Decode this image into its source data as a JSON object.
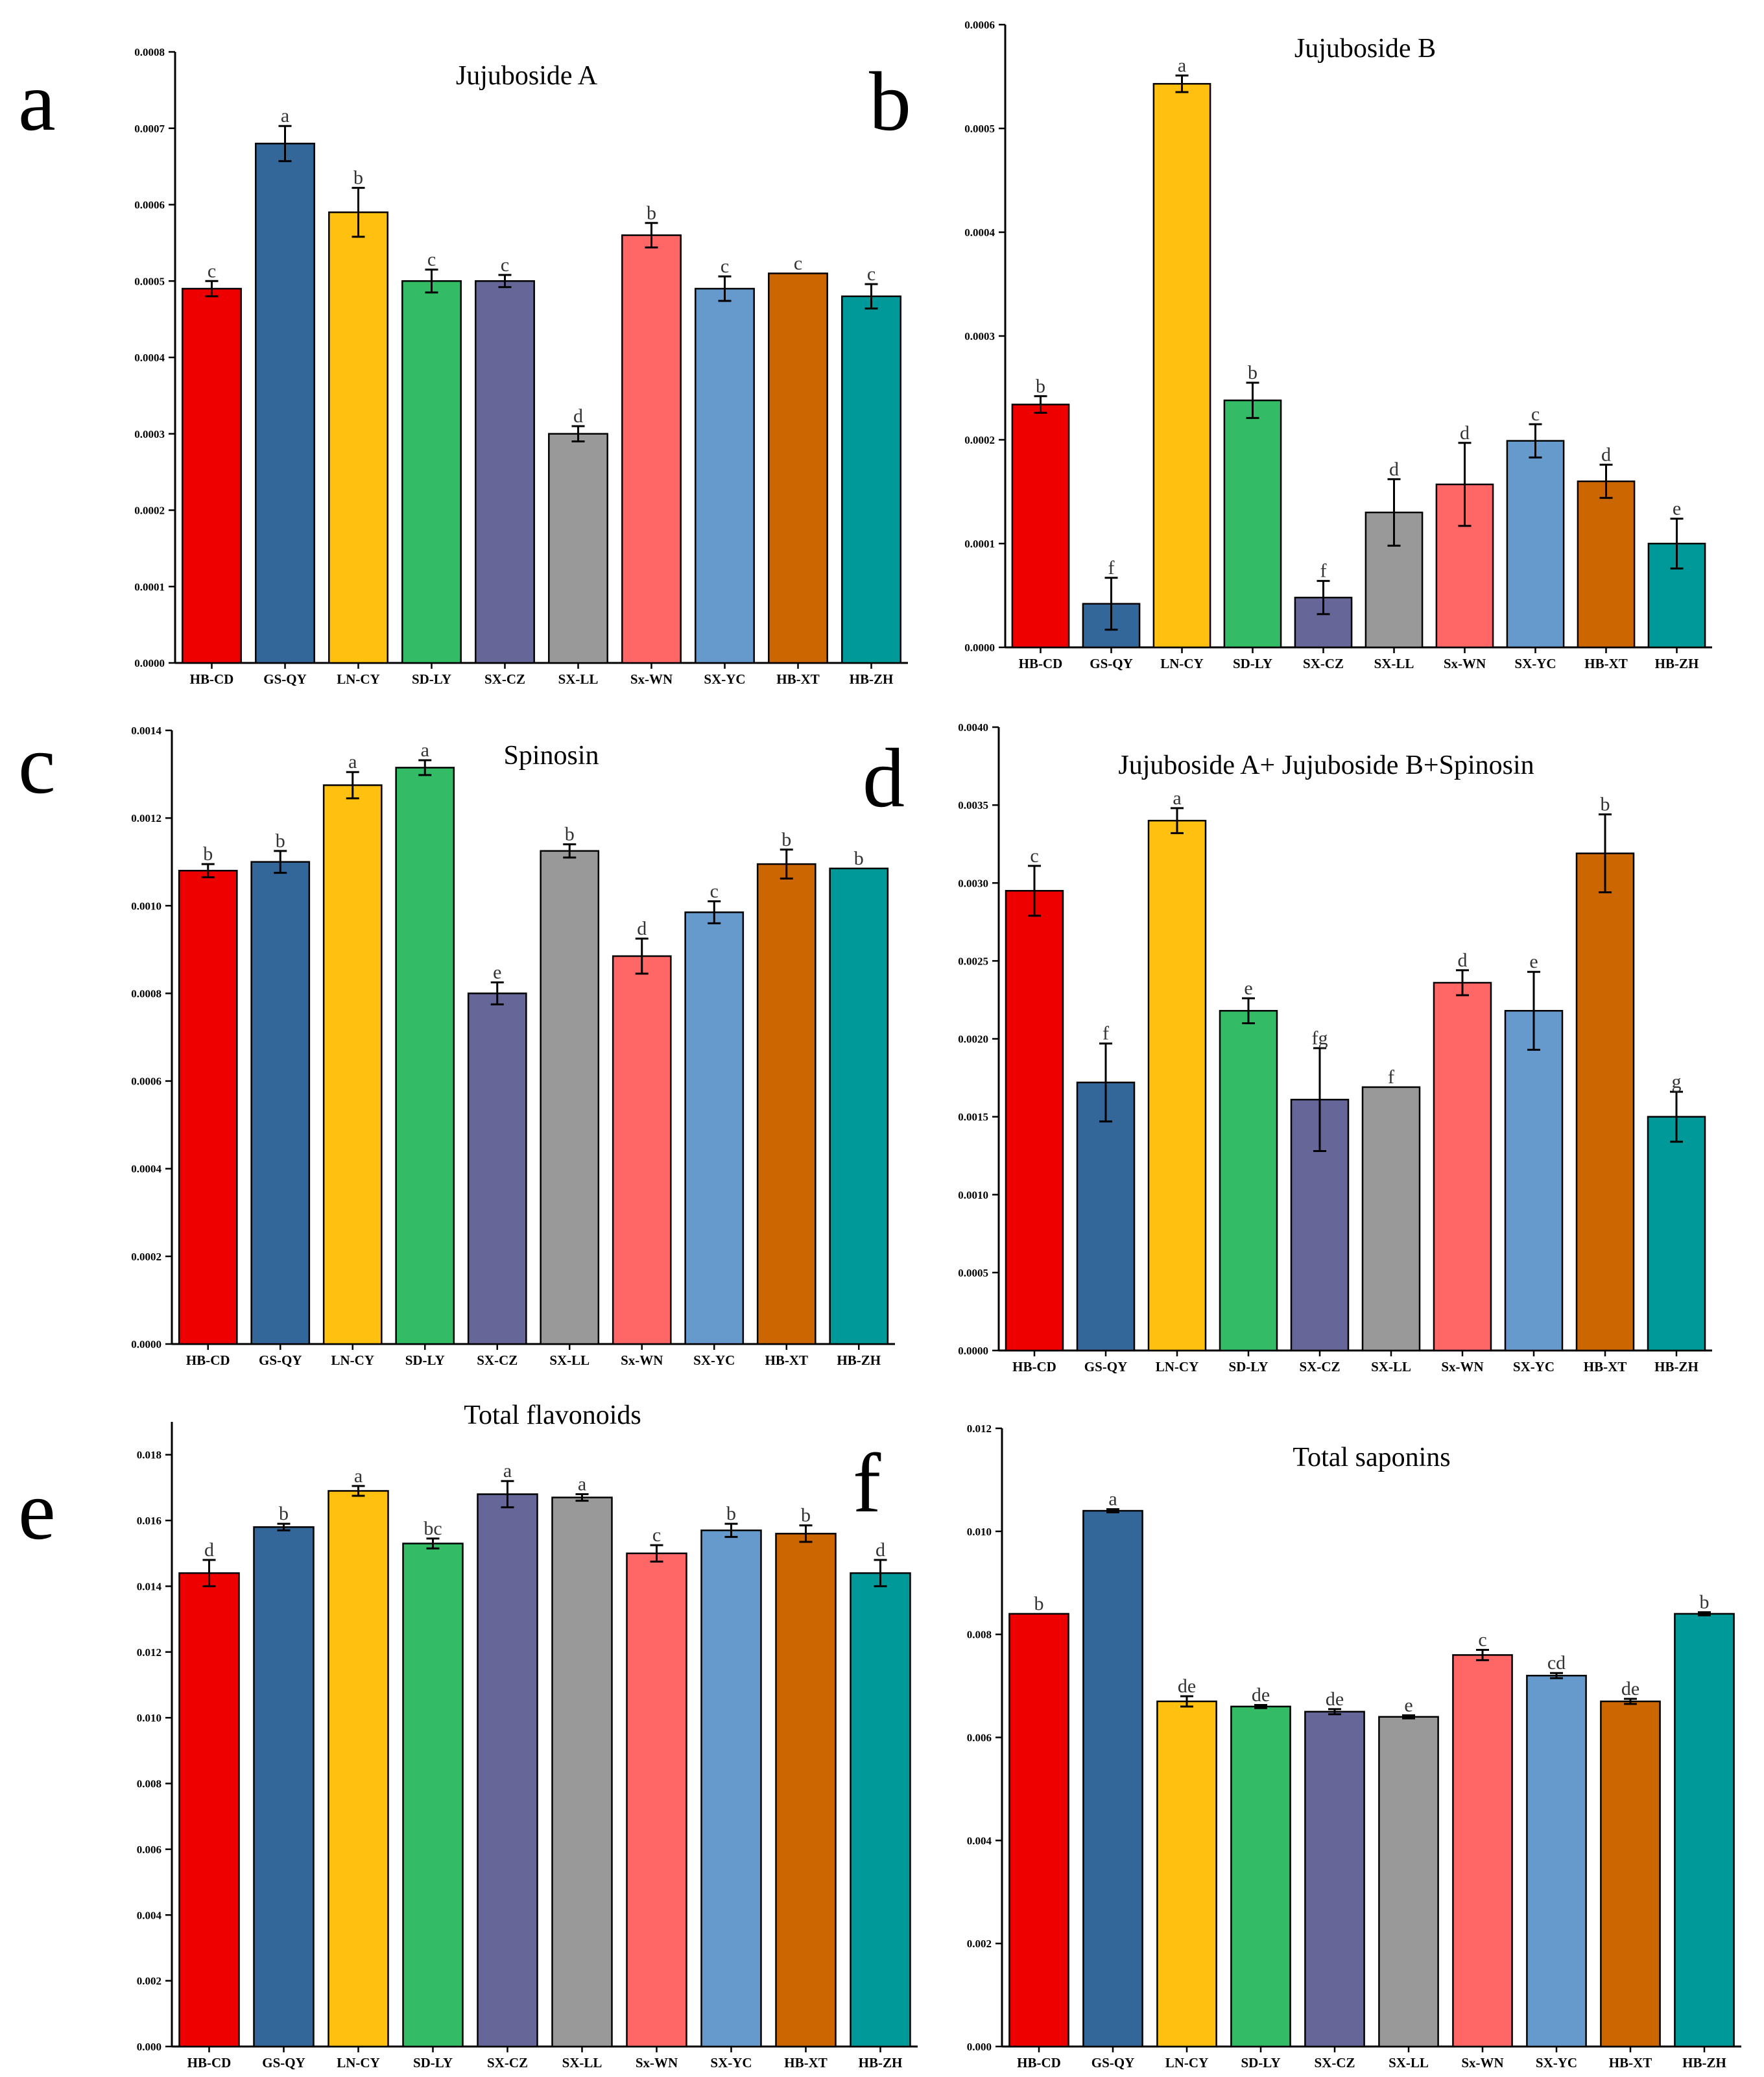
{
  "colors": [
    "#ee0000",
    "#336699",
    "#ffc010",
    "#33bb66",
    "#666699",
    "#999999",
    "#ff6666",
    "#6699cc",
    "#cc6600",
    "#009999"
  ],
  "chart_data": [
    {
      "panel": "a",
      "type": "bar",
      "title": "Jujuboside A",
      "categories": [
        "HB-CD",
        "GS-QY",
        "LN-CY",
        "SD-LY",
        "SX-CZ",
        "SX-LL",
        "Sx-WN",
        "SX-YC",
        "HB-XT",
        "HB-ZH"
      ],
      "values": [
        0.00049,
        0.00068,
        0.00059,
        0.0005,
        0.0005,
        0.0003,
        0.00056,
        0.00049,
        0.00051,
        0.00048
      ],
      "errors": [
        1e-05,
        2.3e-05,
        3.2e-05,
        1.5e-05,
        8e-06,
        1e-05,
        1.6e-05,
        1.6e-05,
        0.0,
        1.6e-05
      ],
      "labels": [
        "c",
        "a",
        "b",
        "c",
        "c",
        "d",
        "b",
        "c",
        "c",
        "c"
      ],
      "ylim": [
        0,
        0.0008
      ],
      "yticks": [
        "0.0000",
        "0.0001",
        "0.0002",
        "0.0003",
        "0.0004",
        "0.0005",
        "0.0006",
        "0.0007",
        "0.0008"
      ]
    },
    {
      "panel": "b",
      "type": "bar",
      "title": "Jujuboside B",
      "categories": [
        "HB-CD",
        "GS-QY",
        "LN-CY",
        "SD-LY",
        "SX-CZ",
        "SX-LL",
        "Sx-WN",
        "SX-YC",
        "HB-XT",
        "HB-ZH"
      ],
      "values": [
        0.000234,
        4.2e-05,
        0.000543,
        0.000238,
        4.8e-05,
        0.00013,
        0.000157,
        0.000199,
        0.00016,
        0.0001
      ],
      "errors": [
        8e-06,
        2.5e-05,
        8e-06,
        1.7e-05,
        1.6e-05,
        3.2e-05,
        4e-05,
        1.6e-05,
        1.6e-05,
        2.4e-05
      ],
      "labels": [
        "b",
        "f",
        "a",
        "b",
        "f",
        "d",
        "d",
        "c",
        "d",
        "e"
      ],
      "ylim": [
        0,
        0.0006
      ],
      "yticks": [
        "0.0000",
        "0.0001",
        "0.0002",
        "0.0003",
        "0.0004",
        "0.0005",
        "0.0006"
      ]
    },
    {
      "panel": "c",
      "type": "bar",
      "title": "Spinosin",
      "categories": [
        "HB-CD",
        "GS-QY",
        "LN-CY",
        "SD-LY",
        "SX-CZ",
        "SX-LL",
        "Sx-WN",
        "SX-YC",
        "HB-XT",
        "HB-ZH"
      ],
      "values": [
        0.00108,
        0.0011,
        0.001275,
        0.001315,
        0.0008,
        0.001125,
        0.000885,
        0.000985,
        0.001095,
        0.001085
      ],
      "errors": [
        1.5e-05,
        2.5e-05,
        3e-05,
        1.7e-05,
        2.5e-05,
        1.5e-05,
        4e-05,
        2.5e-05,
        3.3e-05,
        0.0
      ],
      "labels": [
        "b",
        "b",
        "a",
        "a",
        "e",
        "b",
        "d",
        "c",
        "b",
        "b"
      ],
      "ylim": [
        0,
        0.0014
      ],
      "yticks": [
        "0.0000",
        "0.0002",
        "0.0004",
        "0.0006",
        "0.0008",
        "0.0010",
        "0.0012",
        "0.0014"
      ]
    },
    {
      "panel": "d",
      "type": "bar",
      "title": "Jujuboside A+ Jujuboside B+Spinosin",
      "categories": [
        "HB-CD",
        "GS-QY",
        "LN-CY",
        "SD-LY",
        "SX-CZ",
        "SX-LL",
        "Sx-WN",
        "SX-YC",
        "HB-XT",
        "HB-ZH"
      ],
      "values": [
        0.00295,
        0.00172,
        0.0034,
        0.00218,
        0.00161,
        0.00169,
        0.00236,
        0.00218,
        0.00319,
        0.0015
      ],
      "errors": [
        0.00016,
        0.00025,
        8e-05,
        8e-05,
        0.00033,
        0.0,
        8e-05,
        0.00025,
        0.00025,
        0.00016
      ],
      "labels": [
        "c",
        "f",
        "a",
        "e",
        "fg",
        "f",
        "d",
        "e",
        "b",
        "g"
      ],
      "ylim": [
        0,
        0.004
      ],
      "yticks": [
        "0.0000",
        "0.0005",
        "0.0010",
        "0.0015",
        "0.0020",
        "0.0025",
        "0.0030",
        "0.0035",
        "0.0040"
      ]
    },
    {
      "panel": "e",
      "type": "bar",
      "title": "Total flavonoids",
      "categories": [
        "HB-CD",
        "GS-QY",
        "LN-CY",
        "SD-LY",
        "SX-CZ",
        "SX-LL",
        "Sx-WN",
        "SX-YC",
        "HB-XT",
        "HB-ZH"
      ],
      "values": [
        0.0144,
        0.0158,
        0.0169,
        0.0153,
        0.0168,
        0.0167,
        0.015,
        0.0157,
        0.0156,
        0.0144
      ],
      "errors": [
        0.0004,
        0.0001,
        0.00015,
        0.00015,
        0.0004,
        0.0001,
        0.00025,
        0.0002,
        0.00025,
        0.0004
      ],
      "labels": [
        "d",
        "b",
        "a",
        "bc",
        "a",
        "a",
        "c",
        "b",
        "b",
        "d"
      ],
      "ylim": [
        0,
        0.019
      ],
      "yticks": [
        "0.000",
        "0.002",
        "0.004",
        "0.006",
        "0.008",
        "0.010",
        "0.012",
        "0.014",
        "0.016",
        "0.018"
      ]
    },
    {
      "panel": "f",
      "type": "bar",
      "title": "Total saponins",
      "categories": [
        "HB-CD",
        "GS-QY",
        "LN-CY",
        "SD-LY",
        "SX-CZ",
        "SX-LL",
        "Sx-WN",
        "SX-YC",
        "HB-XT",
        "HB-ZH"
      ],
      "values": [
        0.0084,
        0.0104,
        0.0067,
        0.0066,
        0.0065,
        0.0064,
        0.0076,
        0.0072,
        0.0067,
        0.0084
      ],
      "errors": [
        0.0,
        3e-05,
        0.0001,
        3e-05,
        5e-05,
        3e-05,
        0.0001,
        5e-05,
        5e-05,
        3e-05
      ],
      "labels": [
        "b",
        "a",
        "de",
        "de",
        "de",
        "e",
        "c",
        "cd",
        "de",
        "b"
      ],
      "ylim": [
        0,
        0.012
      ],
      "yticks": [
        "0.000",
        "0.002",
        "0.004",
        "0.006",
        "0.008",
        "0.010",
        "0.012"
      ]
    }
  ]
}
